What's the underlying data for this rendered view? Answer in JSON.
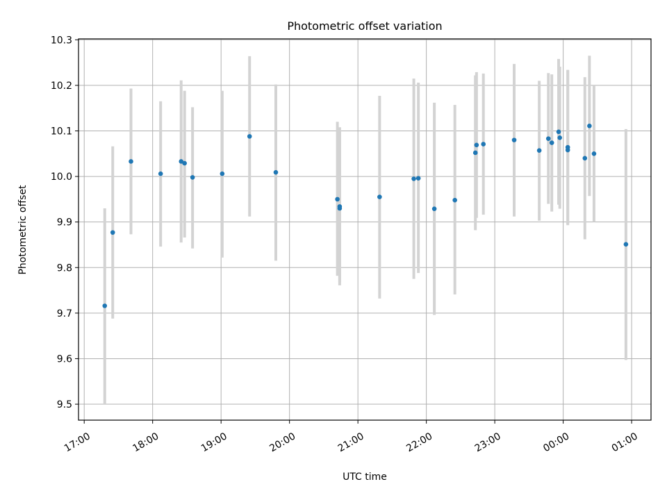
{
  "chart_data": {
    "type": "scatter",
    "title": "Photometric offset variation",
    "xlabel": "UTC time",
    "ylabel": "Photometric offset",
    "x_ticks": [
      "17:00",
      "18:00",
      "19:00",
      "20:00",
      "21:00",
      "22:00",
      "23:00",
      "00:00",
      "01:00"
    ],
    "y_ticks": [
      "9.5",
      "9.6",
      "9.7",
      "9.8",
      "9.9",
      "10.0",
      "10.1",
      "10.2",
      "10.3"
    ],
    "xlim": [
      "16:55",
      "01:17"
    ],
    "ylim": [
      9.465,
      10.302
    ],
    "grid": true,
    "series": [
      {
        "color": "#1f77b4",
        "errorbar_color": "#d3d3d3",
        "points": [
          {
            "x": "17:18",
            "y": 9.716,
            "ylo": 9.5,
            "yhi": 9.93
          },
          {
            "x": "17:25",
            "y": 9.877,
            "ylo": 9.688,
            "yhi": 10.066
          },
          {
            "x": "17:41",
            "y": 10.033,
            "ylo": 9.873,
            "yhi": 10.193
          },
          {
            "x": "18:07",
            "y": 10.006,
            "ylo": 9.846,
            "yhi": 10.165
          },
          {
            "x": "18:25",
            "y": 10.033,
            "ylo": 9.855,
            "yhi": 10.211
          },
          {
            "x": "18:28",
            "y": 10.029,
            "ylo": 9.866,
            "yhi": 10.188
          },
          {
            "x": "18:35",
            "y": 9.998,
            "ylo": 9.842,
            "yhi": 10.152
          },
          {
            "x": "19:01",
            "y": 10.006,
            "ylo": 9.822,
            "yhi": 10.188
          },
          {
            "x": "19:25",
            "y": 10.088,
            "ylo": 9.912,
            "yhi": 10.264
          },
          {
            "x": "19:48",
            "y": 10.009,
            "ylo": 9.815,
            "yhi": 10.202
          },
          {
            "x": "20:42",
            "y": 9.95,
            "ylo": 9.782,
            "yhi": 10.12
          },
          {
            "x": "20:44",
            "y": 9.934,
            "ylo": 9.768,
            "yhi": 10.097
          },
          {
            "x": "20:44",
            "y": 9.93,
            "ylo": 9.761,
            "yhi": 10.108
          },
          {
            "x": "21:19",
            "y": 9.955,
            "ylo": 9.732,
            "yhi": 10.177
          },
          {
            "x": "21:49",
            "y": 9.995,
            "ylo": 9.775,
            "yhi": 10.215
          },
          {
            "x": "21:53",
            "y": 9.996,
            "ylo": 9.788,
            "yhi": 10.206
          },
          {
            "x": "22:07",
            "y": 9.929,
            "ylo": 9.696,
            "yhi": 10.162
          },
          {
            "x": "22:25",
            "y": 9.948,
            "ylo": 9.741,
            "yhi": 10.157
          },
          {
            "x": "22:43",
            "y": 10.052,
            "ylo": 9.882,
            "yhi": 10.222
          },
          {
            "x": "22:44",
            "y": 10.069,
            "ylo": 9.909,
            "yhi": 10.229
          },
          {
            "x": "22:50",
            "y": 10.071,
            "ylo": 9.916,
            "yhi": 10.226
          },
          {
            "x": "23:17",
            "y": 10.08,
            "ylo": 9.912,
            "yhi": 10.247
          },
          {
            "x": "23:39",
            "y": 10.057,
            "ylo": 9.903,
            "yhi": 10.21
          },
          {
            "x": "23:47",
            "y": 10.083,
            "ylo": 9.94,
            "yhi": 10.227
          },
          {
            "x": "23:50",
            "y": 10.074,
            "ylo": 9.923,
            "yhi": 10.224
          },
          {
            "x": "23:56",
            "y": 10.098,
            "ylo": 9.938,
            "yhi": 10.258
          },
          {
            "x": "23:57",
            "y": 10.085,
            "ylo": 9.929,
            "yhi": 10.241
          },
          {
            "x": "00:04",
            "y": 10.058,
            "ylo": 9.893,
            "yhi": 10.234
          },
          {
            "x": "00:04",
            "y": 10.064,
            "ylo": 9.895,
            "yhi": 10.233
          },
          {
            "x": "00:19",
            "y": 10.04,
            "ylo": 9.862,
            "yhi": 10.218
          },
          {
            "x": "00:23",
            "y": 10.111,
            "ylo": 9.957,
            "yhi": 10.265
          },
          {
            "x": "00:27",
            "y": 10.05,
            "ylo": 9.9,
            "yhi": 10.2
          },
          {
            "x": "00:55",
            "y": 9.851,
            "ylo": 9.597,
            "yhi": 10.104
          }
        ]
      }
    ]
  }
}
